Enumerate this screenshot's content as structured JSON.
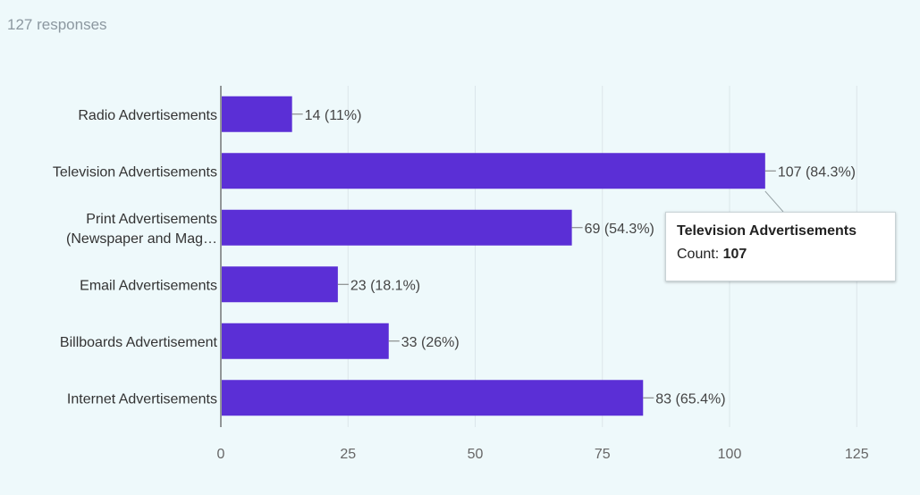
{
  "header": {
    "responses": "127 responses"
  },
  "chart_data": {
    "type": "bar",
    "orientation": "horizontal",
    "categories": [
      [
        "Radio Advertisements"
      ],
      [
        "Television Advertisements"
      ],
      [
        "Print Advertisements",
        "(Newspaper and Mag…"
      ],
      [
        "Email Advertisements"
      ],
      [
        "Billboards Advertisement"
      ],
      [
        "Internet Advertisements"
      ]
    ],
    "values": [
      14,
      107,
      69,
      23,
      33,
      83
    ],
    "value_labels": [
      "14 (11%)",
      "107 (84.3%)",
      "69 (54.3%)",
      "23 (18.1%)",
      "33 (26%)",
      "83 (65.4%)"
    ],
    "xlim": [
      0,
      125
    ],
    "xticks": [
      0,
      25,
      50,
      75,
      100,
      125
    ],
    "grid": true,
    "bar_color": "#5b2fd6"
  },
  "tooltip": {
    "title": "Television Advertisements",
    "count_label": "Count: ",
    "count_value": "107"
  }
}
